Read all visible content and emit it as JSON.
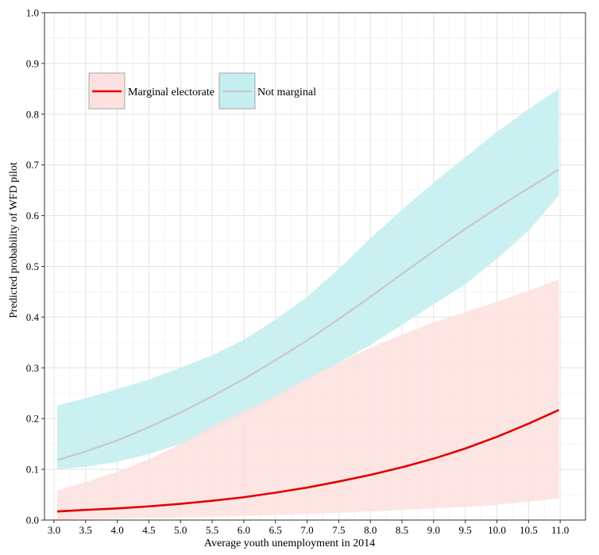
{
  "chart_data": {
    "type": "line",
    "title": "",
    "xlabel": "Average youth unemployment in 2014",
    "ylabel": "Predicted probability of WFD pilot",
    "xlim": [
      2.85,
      11.4
    ],
    "ylim": [
      0,
      1.0
    ],
    "xticks": [
      3.0,
      3.5,
      4.0,
      4.5,
      5.0,
      5.5,
      6.0,
      6.5,
      7.0,
      7.5,
      8.0,
      8.5,
      9.0,
      9.5,
      10.0,
      10.5,
      11.0
    ],
    "xtick_labels": [
      "3.0",
      "3.5",
      "4.0",
      "4.5",
      "5.0",
      "5.5",
      "6.0",
      "6.5",
      "7.0",
      "7.5",
      "8.0",
      "8.5",
      "9.0",
      "9.5",
      "10.0",
      "10.5",
      "11.0"
    ],
    "yticks": [
      0.0,
      0.1,
      0.2,
      0.3,
      0.4,
      0.5,
      0.6,
      0.7,
      0.8,
      0.9,
      1.0
    ],
    "ytick_labels": [
      "0.0",
      "0.1",
      "0.2",
      "0.3",
      "0.4",
      "0.5",
      "0.6",
      "0.7",
      "0.8",
      "0.9",
      "1.0"
    ],
    "grid": true,
    "legend_position": "top-left",
    "x": [
      3.05,
      3.5,
      4.0,
      4.5,
      5.0,
      5.5,
      6.0,
      6.5,
      7.0,
      7.5,
      8.0,
      8.5,
      9.0,
      9.5,
      10.0,
      10.5,
      10.98
    ],
    "series": [
      {
        "name": "Marginal electorate",
        "color": "#e00000",
        "band_color": "#fde0df",
        "values": [
          0.017,
          0.02,
          0.023,
          0.027,
          0.032,
          0.038,
          0.045,
          0.054,
          0.064,
          0.076,
          0.089,
          0.104,
          0.121,
          0.141,
          0.164,
          0.19,
          0.217
        ],
        "lower": [
          0.0,
          0.002,
          0.003,
          0.004,
          0.005,
          0.006,
          0.008,
          0.01,
          0.012,
          0.014,
          0.017,
          0.02,
          0.023,
          0.026,
          0.03,
          0.036,
          0.043
        ],
        "upper": [
          0.058,
          0.075,
          0.095,
          0.12,
          0.15,
          0.185,
          0.215,
          0.245,
          0.28,
          0.31,
          0.34,
          0.365,
          0.39,
          0.41,
          0.43,
          0.452,
          0.475
        ]
      },
      {
        "name": "Not marginal",
        "color": "#c8c8c8",
        "band_color": "#c4eef0",
        "values": [
          0.118,
          0.135,
          0.157,
          0.183,
          0.212,
          0.244,
          0.278,
          0.315,
          0.354,
          0.396,
          0.44,
          0.485,
          0.53,
          0.574,
          0.615,
          0.654,
          0.691
        ],
        "lower": [
          0.1,
          0.105,
          0.115,
          0.13,
          0.15,
          0.175,
          0.205,
          0.24,
          0.275,
          0.31,
          0.345,
          0.385,
          0.425,
          0.465,
          0.515,
          0.57,
          0.64
        ],
        "upper": [
          0.226,
          0.24,
          0.258,
          0.277,
          0.3,
          0.325,
          0.355,
          0.395,
          0.44,
          0.495,
          0.555,
          0.612,
          0.665,
          0.715,
          0.765,
          0.81,
          0.85
        ]
      }
    ]
  }
}
